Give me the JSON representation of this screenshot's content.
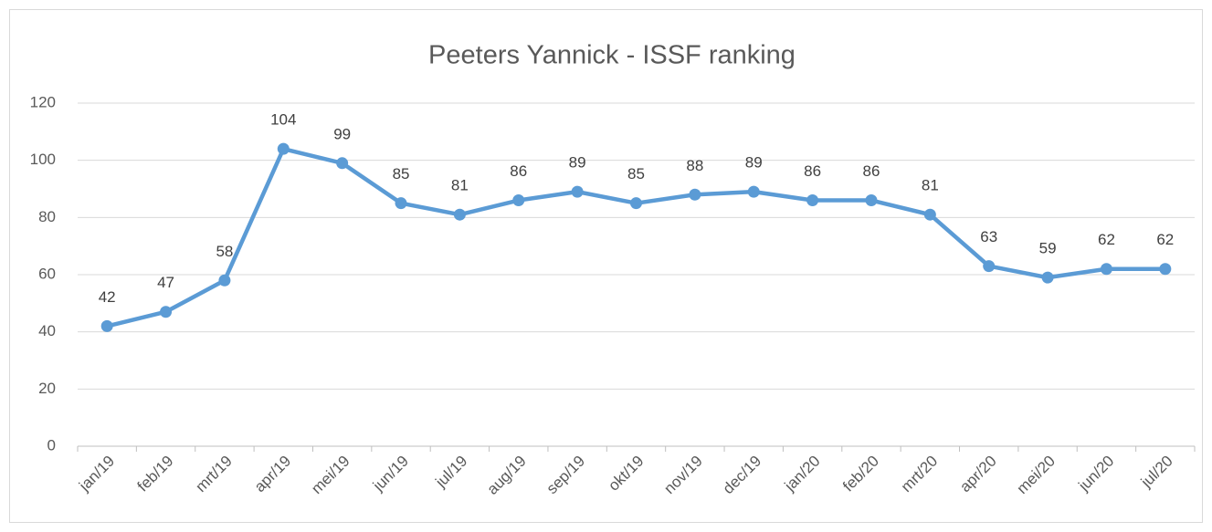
{
  "chart_data": {
    "type": "line",
    "title": "Peeters Yannick - ISSF ranking",
    "categories": [
      "jan/19",
      "feb/19",
      "mrt/19",
      "apr/19",
      "mei/19",
      "jun/19",
      "jul/19",
      "aug/19",
      "sep/19",
      "okt/19",
      "nov/19",
      "dec/19",
      "jan/20",
      "feb/20",
      "mrt/20",
      "apr/20",
      "mei/20",
      "jun/20",
      "jul/20"
    ],
    "values": [
      42,
      47,
      58,
      104,
      99,
      85,
      81,
      86,
      89,
      85,
      88,
      89,
      86,
      86,
      81,
      63,
      59,
      62,
      62
    ],
    "color": "#5b9bd5",
    "ylim": [
      0,
      120
    ],
    "yticks": [
      0,
      20,
      40,
      60,
      80,
      100,
      120
    ],
    "grid": true
  }
}
